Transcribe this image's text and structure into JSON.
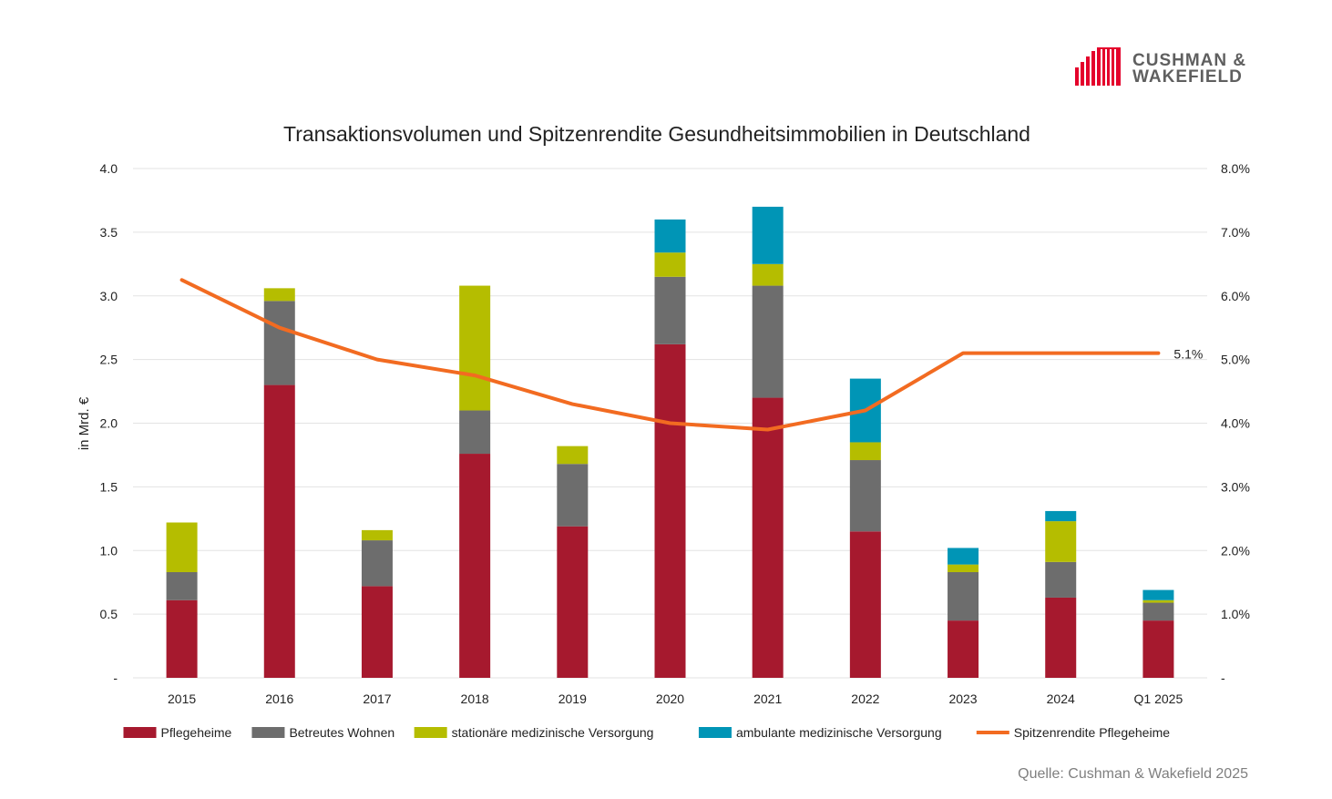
{
  "logo": {
    "line1": "CUSHMAN &",
    "line2": "WAKEFIELD",
    "color": "#e4002b"
  },
  "source": "Quelle: Cushman & Wakefield 2025",
  "chart_data": {
    "type": "bar",
    "stacked": true,
    "title": "Transaktionsvolumen und Spitzenrendite Gesundheitsimmobilien in Deutschland",
    "ylabel": "in Mrd. €",
    "ylim": [
      0,
      4
    ],
    "y_ticks": [
      "-",
      "0.5",
      "1.0",
      "1.5",
      "2.0",
      "2.5",
      "3.0",
      "3.5",
      "4.0"
    ],
    "y2lim": [
      0,
      8
    ],
    "y2_ticks": [
      "-",
      "1.0%",
      "2.0%",
      "3.0%",
      "4.0%",
      "5.0%",
      "6.0%",
      "7.0%",
      "8.0%"
    ],
    "grid": true,
    "legend_position": "bottom",
    "categories": [
      "2015",
      "2016",
      "2017",
      "2018",
      "2019",
      "2020",
      "2021",
      "2022",
      "2023",
      "2024",
      "Q1 2025"
    ],
    "series": [
      {
        "name": "Pflegeheime",
        "color": "#a6192e",
        "values": [
          0.61,
          2.3,
          0.72,
          1.76,
          1.19,
          2.62,
          2.2,
          1.15,
          0.45,
          0.63,
          0.45
        ]
      },
      {
        "name": "Betreutes Wohnen",
        "color": "#6d6d6d",
        "values": [
          0.22,
          0.66,
          0.36,
          0.34,
          0.49,
          0.53,
          0.88,
          0.56,
          0.38,
          0.28,
          0.14
        ]
      },
      {
        "name": "stationäre medizinische Versorgung",
        "color": "#b5bd00",
        "values": [
          0.39,
          0.1,
          0.08,
          0.98,
          0.14,
          0.19,
          0.17,
          0.14,
          0.06,
          0.32,
          0.02
        ]
      },
      {
        "name": "ambulante medizinische Versorgung",
        "color": "#0095b6",
        "values": [
          0,
          0,
          0,
          0,
          0,
          0.26,
          0.45,
          0.5,
          0.13,
          0.08,
          0.08
        ]
      }
    ],
    "line_series": {
      "name": "Spitzenrendite Pflegeheime",
      "color": "#f26b21",
      "axis": "right",
      "values": [
        6.25,
        5.5,
        5.0,
        4.75,
        4.3,
        4.0,
        3.9,
        4.2,
        5.1,
        5.1,
        5.1
      ],
      "end_label": "5.1%"
    }
  }
}
